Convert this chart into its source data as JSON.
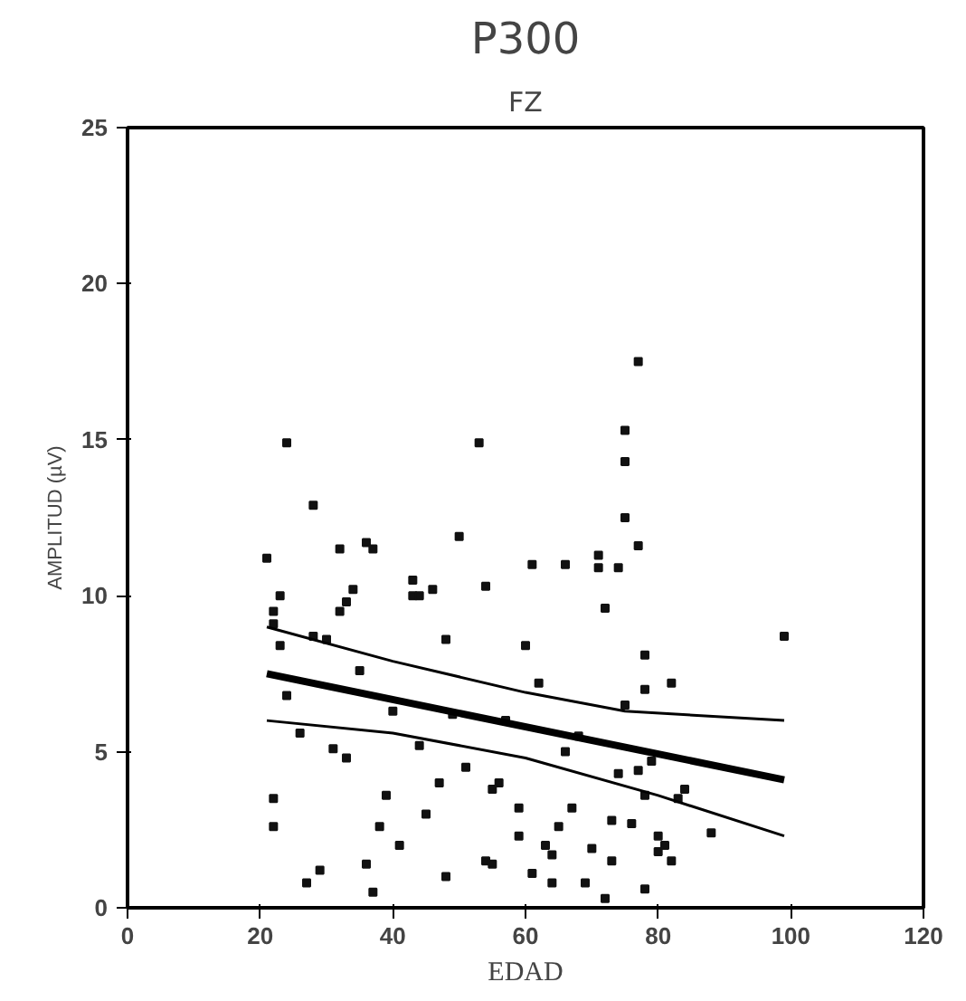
{
  "chart_data": {
    "type": "scatter",
    "title": "P300",
    "subtitle": "FZ",
    "xlabel": "EDAD",
    "ylabel": "AMPLITUD (µV)",
    "xlim": [
      0,
      120
    ],
    "ylim": [
      0,
      25
    ],
    "xticks": [
      0,
      20,
      40,
      60,
      80,
      100,
      120
    ],
    "yticks": [
      0,
      5,
      10,
      15,
      20,
      25
    ],
    "grid": false,
    "series": [
      {
        "marker": "square",
        "color": "#111111",
        "x": [
          21,
          22,
          22,
          23,
          22,
          22,
          23,
          24,
          24,
          26,
          27,
          28,
          28,
          29,
          30,
          31,
          32,
          32,
          33,
          33,
          34,
          35,
          36,
          36,
          37,
          37,
          38,
          39,
          40,
          41,
          43,
          43,
          44,
          44,
          45,
          46,
          47,
          48,
          48,
          49,
          50,
          51,
          53,
          54,
          54,
          55,
          55,
          56,
          57,
          59,
          59,
          60,
          61,
          61,
          62,
          63,
          64,
          64,
          65,
          66,
          66,
          67,
          68,
          69,
          70,
          71,
          71,
          72,
          72,
          73,
          73,
          74,
          74,
          75,
          75,
          75,
          75,
          76,
          77,
          77,
          77,
          78,
          78,
          78,
          78,
          79,
          80,
          80,
          81,
          82,
          82,
          83,
          84,
          88,
          99
        ],
        "values": [
          11.2,
          9.5,
          9.1,
          8.4,
          3.5,
          2.6,
          10.0,
          14.9,
          6.8,
          5.6,
          0.8,
          12.9,
          8.7,
          1.2,
          8.6,
          5.1,
          9.5,
          11.5,
          9.8,
          4.8,
          10.2,
          7.6,
          11.7,
          1.4,
          11.5,
          0.5,
          2.6,
          3.6,
          6.3,
          2.0,
          10.5,
          10.0,
          10.0,
          5.2,
          3.0,
          10.2,
          4.0,
          8.6,
          1.0,
          6.2,
          11.9,
          4.5,
          14.9,
          10.3,
          1.5,
          3.8,
          1.4,
          4.0,
          6.0,
          3.2,
          2.3,
          8.4,
          1.1,
          11.0,
          7.2,
          2.0,
          0.8,
          1.7,
          2.6,
          5.0,
          11.0,
          3.2,
          5.5,
          0.8,
          1.9,
          11.3,
          10.9,
          9.6,
          0.3,
          1.5,
          2.8,
          4.3,
          10.9,
          12.5,
          15.3,
          14.3,
          6.5,
          2.7,
          17.5,
          11.6,
          4.4,
          8.1,
          7.0,
          3.6,
          0.6,
          4.7,
          2.3,
          1.8,
          2.0,
          1.5,
          7.2,
          3.5,
          3.8,
          2.4,
          8.7
        ]
      },
      {
        "type": "line",
        "marker": "none",
        "color": "#000000",
        "x": [
          21,
          99
        ],
        "values": [
          7.5,
          4.1
        ]
      },
      {
        "type": "line",
        "marker": "none",
        "color": "#000000",
        "x": [
          21,
          40,
          60,
          75,
          99
        ],
        "values": [
          9.0,
          7.9,
          6.9,
          6.3,
          6.0
        ]
      },
      {
        "type": "line",
        "marker": "none",
        "color": "#000000",
        "x": [
          21,
          40,
          60,
          80,
          99
        ],
        "values": [
          6.0,
          5.6,
          4.8,
          3.6,
          2.3
        ]
      }
    ]
  }
}
